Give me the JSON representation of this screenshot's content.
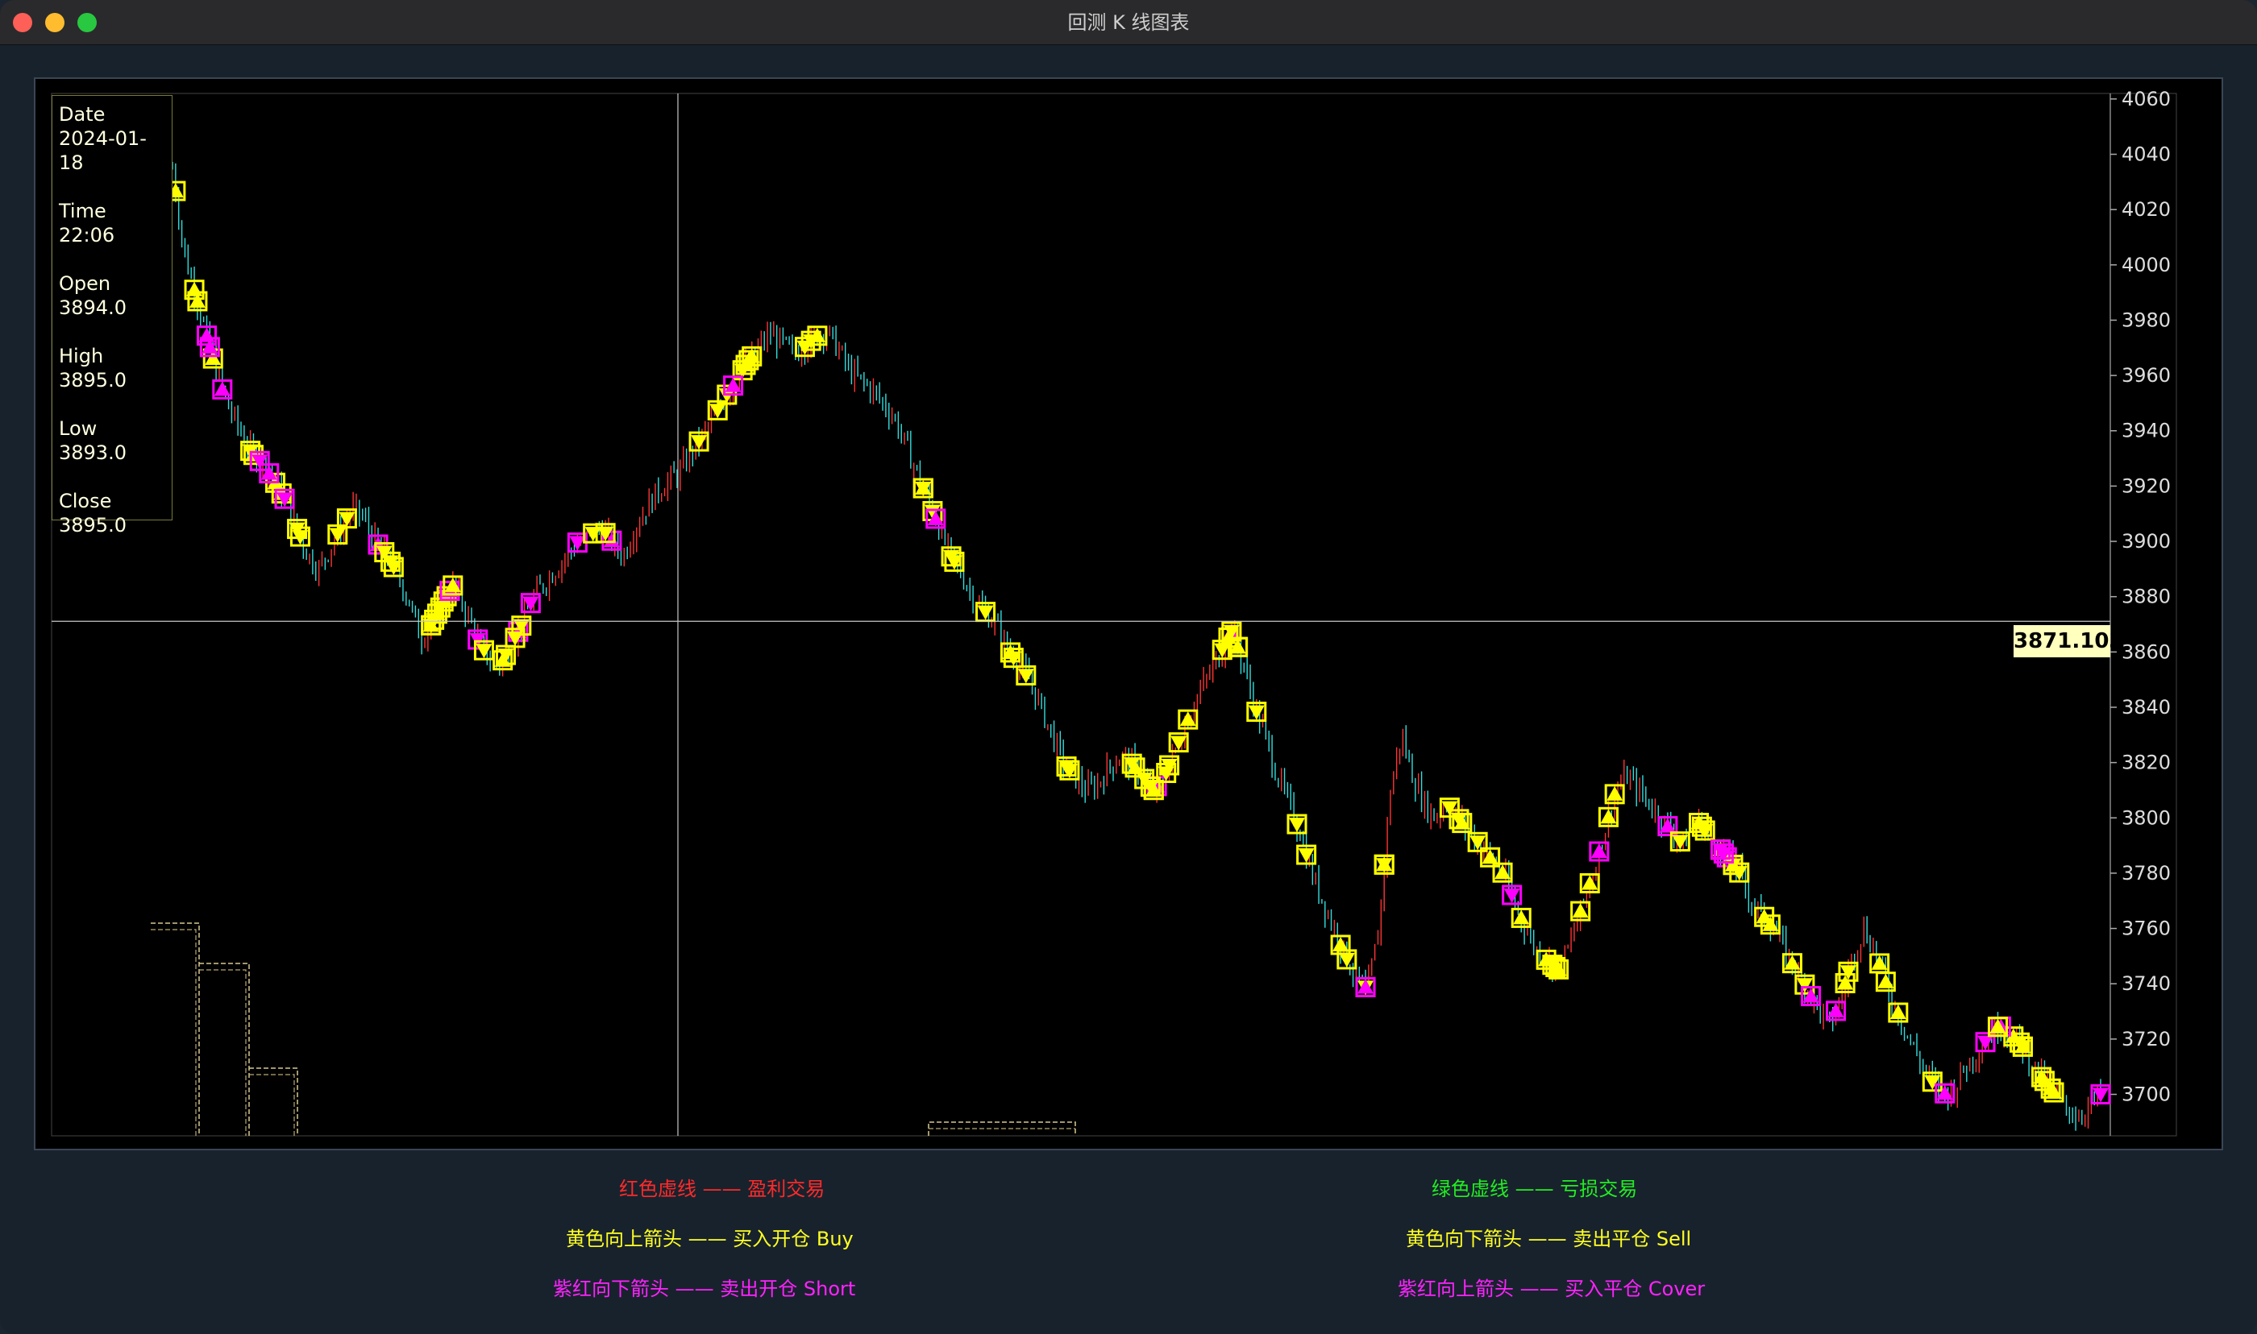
{
  "window": {
    "title": "回测 K 线图表"
  },
  "info_panel": {
    "date_label": "Date",
    "date_value": "2024-01-18",
    "time_label": "Time",
    "time_value": "22:06",
    "open_label": "Open",
    "open_value": "3894.0",
    "high_label": "High",
    "high_value": "3895.0",
    "low_label": "Low",
    "low_value": "3893.0",
    "close_label": "Close",
    "close_value": "3895.0"
  },
  "crosshair": {
    "price_label": "3871.103"
  },
  "legend": {
    "profit": "红色虚线 —— 盈利交易",
    "loss": "绿色虚线 —— 亏损交易",
    "buy": "黄色向上箭头 —— 买入开仓 Buy",
    "sell": "黄色向下箭头 —— 卖出平仓 Sell",
    "short": "紫红向下箭头 —— 卖出开仓 Short",
    "cover": "紫红向上箭头 —— 买入平仓 Cover"
  },
  "colors": {
    "up_candle": "#ff3333",
    "down_candle": "#33dddd",
    "buy_marker": "#ffff00",
    "short_marker": "#ff00ff",
    "axis_text": "#dddddd",
    "crosshair": "#c8c8c8"
  },
  "chart_data": {
    "type": "candlestick",
    "title": "",
    "ylim": [
      3685,
      4062
    ],
    "yticks": [
      4060,
      4040,
      4020,
      4000,
      3980,
      3960,
      3940,
      3920,
      3900,
      3880,
      3860,
      3840,
      3820,
      3800,
      3780,
      3760,
      3740,
      3720,
      3700
    ],
    "crosshair_price": 3871.103,
    "close_series": [
      4035,
      4005,
      3990,
      3975,
      3960,
      3948,
      3940,
      3932,
      3928,
      3922,
      3915,
      3905,
      3895,
      3890,
      3898,
      3905,
      3912,
      3908,
      3900,
      3895,
      3888,
      3878,
      3865,
      3870,
      3878,
      3885,
      3875,
      3865,
      3858,
      3855,
      3862,
      3870,
      3880,
      3885,
      3890,
      3895,
      3900,
      3902,
      3905,
      3900,
      3895,
      3905,
      3912,
      3918,
      3922,
      3925,
      3932,
      3938,
      3945,
      3952,
      3958,
      3965,
      3970,
      3975,
      3972,
      3968,
      3970,
      3974,
      3976,
      3970,
      3962,
      3958,
      3955,
      3950,
      3945,
      3935,
      3925,
      3915,
      3905,
      3895,
      3888,
      3880,
      3875,
      3870,
      3862,
      3855,
      3850,
      3840,
      3830,
      3820,
      3815,
      3810,
      3812,
      3818,
      3822,
      3820,
      3815,
      3810,
      3815,
      3825,
      3835,
      3845,
      3852,
      3860,
      3868,
      3855,
      3840,
      3828,
      3815,
      3805,
      3795,
      3780,
      3770,
      3760,
      3750,
      3742,
      3738,
      3760,
      3810,
      3830,
      3815,
      3805,
      3800,
      3805,
      3800,
      3795,
      3790,
      3785,
      3780,
      3770,
      3760,
      3752,
      3748,
      3745,
      3755,
      3768,
      3780,
      3795,
      3810,
      3815,
      3810,
      3805,
      3800,
      3795,
      3790,
      3800,
      3795,
      3790,
      3785,
      3780,
      3770,
      3765,
      3760,
      3752,
      3745,
      3738,
      3730,
      3725,
      3735,
      3750,
      3760,
      3752,
      3740,
      3730,
      3720,
      3712,
      3705,
      3700,
      3702,
      3710,
      3715,
      3720,
      3725,
      3722,
      3718,
      3710,
      3705,
      3700,
      3695,
      3692,
      3696,
      3700
    ]
  }
}
